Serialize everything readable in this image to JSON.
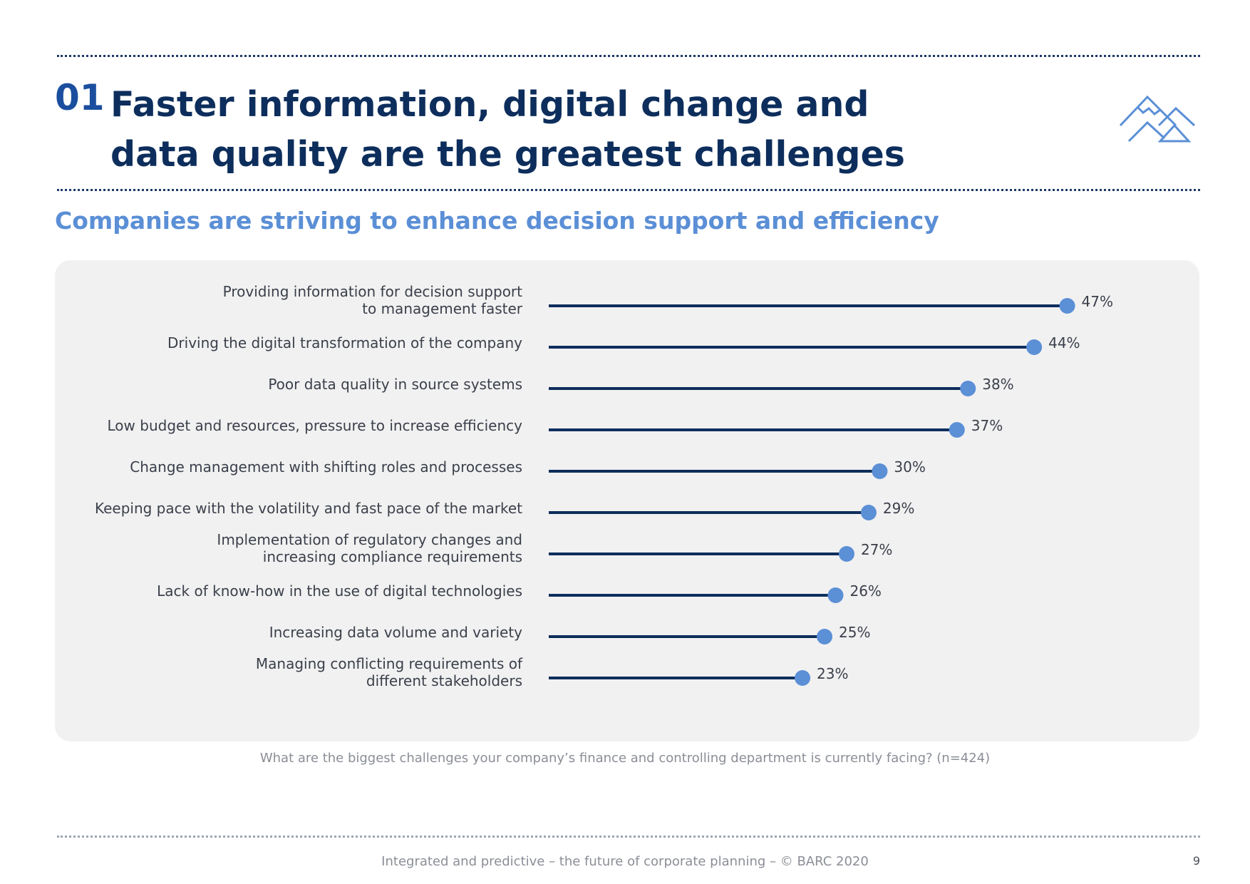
{
  "header": {
    "section_number": "01",
    "title_line1": "Faster information, digital change and",
    "title_line2": "data quality are the greatest challenges",
    "subtitle": "Companies are striving to enhance decision support and efficiency"
  },
  "colors": {
    "navy": "#0d2e5c",
    "accent_blue": "#5b8fd6",
    "line": "#0d2e5c",
    "dot": "#5b8fd6"
  },
  "chart_data": {
    "type": "lollipop",
    "title": "Companies are striving to enhance decision support and efficiency",
    "categories": [
      [
        "Providing information for decision support",
        "to management faster"
      ],
      [
        "Driving the digital transformation of the company"
      ],
      [
        "Poor data quality in source systems"
      ],
      [
        "Low budget and resources, pressure to increase efficiency"
      ],
      [
        "Change management with shifting roles and processes"
      ],
      [
        "Keeping pace with the volatility and fast pace of the market"
      ],
      [
        "Implementation of regulatory changes and",
        "increasing compliance requirements"
      ],
      [
        "Lack of know-how in the use of digital technologies"
      ],
      [
        "Increasing data volume and variety"
      ],
      [
        "Managing conflicting requirements of",
        "different stakeholders"
      ]
    ],
    "values": [
      47,
      44,
      38,
      37,
      30,
      29,
      27,
      26,
      25,
      23
    ],
    "value_labels": [
      "47%",
      "44%",
      "38%",
      "37%",
      "30%",
      "29%",
      "27%",
      "26%",
      "25%",
      "23%"
    ],
    "unit": "%",
    "xlim": [
      0,
      50
    ],
    "xlabel": "",
    "ylabel": "",
    "grid": false,
    "legend": "none"
  },
  "caption": "What are the biggest challenges your company’s finance and controlling department is currently facing? (n=424)",
  "footer": {
    "text": "Integrated and predictive – the future of corporate planning  – © BARC 2020",
    "page_number": "9"
  }
}
